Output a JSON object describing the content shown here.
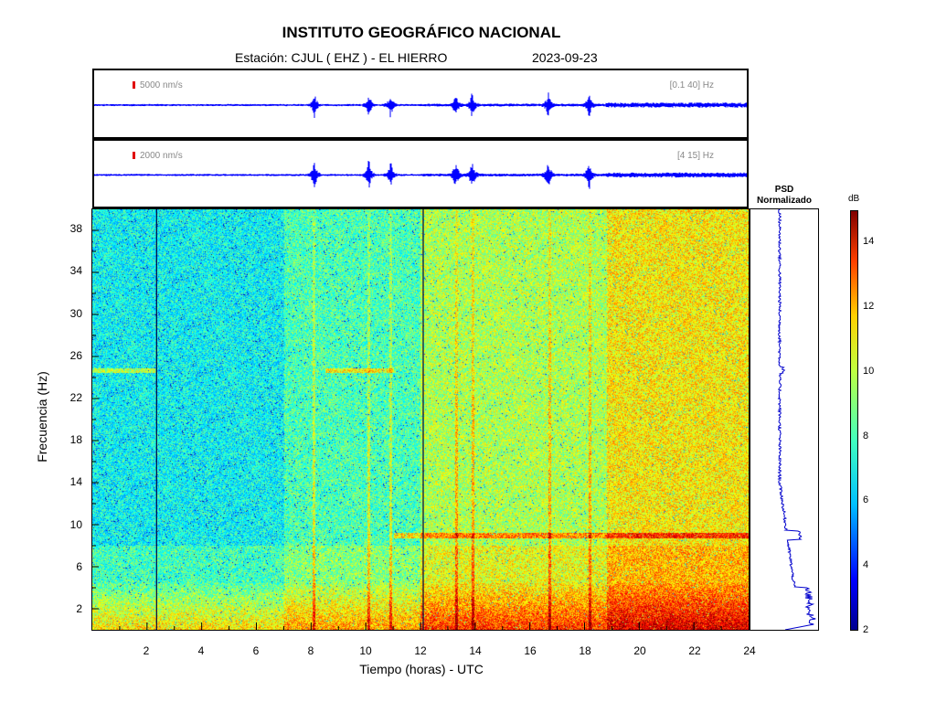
{
  "header": {
    "title": "INSTITUTO GEOGRÁFICO NACIONAL",
    "station": "Estación:  CJUL ( EHZ ) - EL HIERRO",
    "date": "2023-09-23"
  },
  "traces": [
    {
      "scale_label": "5000 nm/s",
      "filter_label": "[0.1 40] Hz",
      "color": "#0000ff"
    },
    {
      "scale_label": "2000 nm/s",
      "filter_label": "[4 15] Hz",
      "color": "#0000ff"
    }
  ],
  "psd": {
    "title_line1": "PSD",
    "title_line2": "Normalizado"
  },
  "colorbar": {
    "unit": "dB",
    "ticks": [
      2,
      4,
      6,
      8,
      10,
      12,
      14
    ],
    "range": [
      2,
      15
    ]
  },
  "chart_data": {
    "type": "heatmap",
    "title": "INSTITUTO GEOGRÁFICO NACIONAL",
    "xlabel": "Tiempo (horas) - UTC",
    "ylabel": "Frecuencia  (Hz)",
    "xlim": [
      0,
      24
    ],
    "ylim": [
      0,
      40
    ],
    "xticks": [
      2,
      4,
      6,
      8,
      10,
      12,
      14,
      16,
      18,
      20,
      22,
      24
    ],
    "yticks": [
      2,
      6,
      10,
      14,
      18,
      22,
      26,
      30,
      34,
      38
    ],
    "event_times_h": [
      8.1,
      10.1,
      10.9,
      13.3,
      13.9,
      16.7,
      18.2
    ],
    "data_gaps_h": [
      2.35,
      12.1
    ],
    "colorscale_db": [
      2,
      15
    ]
  }
}
